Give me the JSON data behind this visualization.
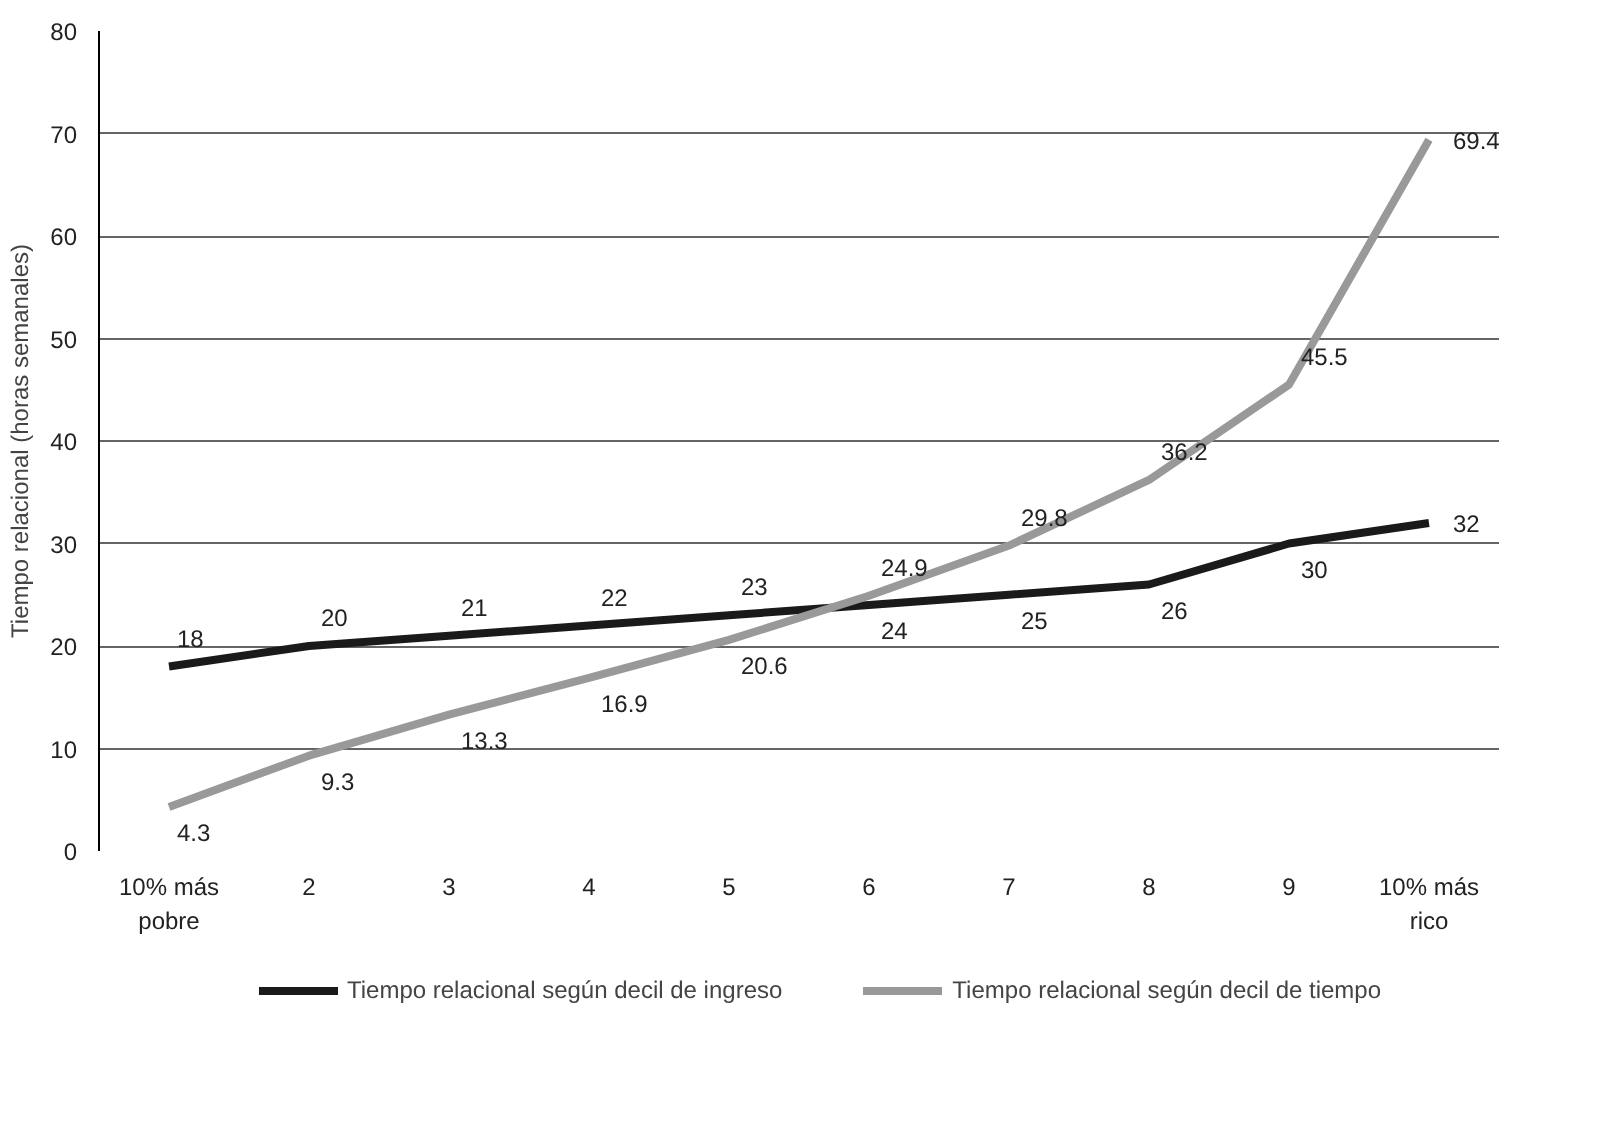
{
  "chart_data": {
    "type": "line",
    "ylabel": "Tiempo relacional (horas semanales)",
    "categories": [
      "10% más pobre",
      "2",
      "3",
      "4",
      "5",
      "6",
      "7",
      "8",
      "9",
      "10% más rico"
    ],
    "series": [
      {
        "name": "Tiempo relacional según decil de ingreso",
        "color": "#1a1a1a",
        "values": [
          18,
          20,
          21,
          22,
          23,
          24,
          25,
          26,
          30,
          32
        ]
      },
      {
        "name": "Tiempo relacional según decil de tiempo",
        "color": "#999999",
        "values": [
          4.3,
          9.3,
          13.3,
          16.9,
          20.6,
          24.9,
          29.8,
          36.2,
          45.5,
          69.4
        ]
      }
    ],
    "ylim": [
      0,
      80
    ],
    "yticks": [
      0,
      10,
      20,
      30,
      40,
      50,
      60,
      70,
      80
    ],
    "grid": "y",
    "legend": "bottom",
    "data_labels": true,
    "marker": "none",
    "line_style": "solid"
  }
}
